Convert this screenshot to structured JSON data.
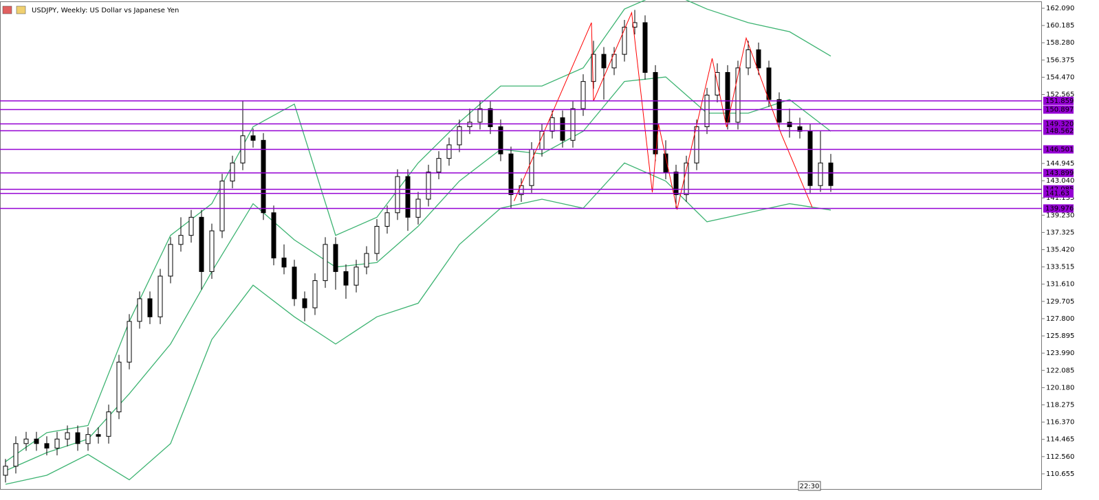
{
  "chart_data": {
    "type": "candlestick",
    "title": "USDJPY, Weekly:  US Dollar vs Japanese Yen",
    "time_label": "22:30",
    "ylim": [
      108.98,
      162.85
    ],
    "yticks": [
      {
        "value": 162.09,
        "label": "162.090"
      },
      {
        "value": 160.185,
        "label": "160.185"
      },
      {
        "value": 158.28,
        "label": "158.280"
      },
      {
        "value": 156.375,
        "label": "156.375"
      },
      {
        "value": 154.47,
        "label": "154.470"
      },
      {
        "value": 152.565,
        "label": "152.565"
      },
      {
        "value": 144.945,
        "label": "144.945"
      },
      {
        "value": 143.04,
        "label": "143.040"
      },
      {
        "value": 141.135,
        "label": "141.135"
      },
      {
        "value": 139.23,
        "label": "139.230"
      },
      {
        "value": 137.325,
        "label": "137.325"
      },
      {
        "value": 135.42,
        "label": "135.420"
      },
      {
        "value": 133.515,
        "label": "133.515"
      },
      {
        "value": 131.61,
        "label": "131.610"
      },
      {
        "value": 129.705,
        "label": "129.705"
      },
      {
        "value": 127.8,
        "label": "127.800"
      },
      {
        "value": 125.895,
        "label": "125.895"
      },
      {
        "value": 123.99,
        "label": "123.990"
      },
      {
        "value": 122.085,
        "label": "122.085"
      },
      {
        "value": 120.18,
        "label": "120.180"
      },
      {
        "value": 118.275,
        "label": "118.275"
      },
      {
        "value": 116.37,
        "label": "116.370"
      },
      {
        "value": 114.465,
        "label": "114.465"
      },
      {
        "value": 112.56,
        "label": "112.560"
      },
      {
        "value": 110.655,
        "label": "110.655"
      }
    ],
    "open": [
      110.5,
      111.5,
      114.0,
      114.5,
      114.0,
      113.5,
      114.5,
      115.2,
      114.0,
      115.0,
      114.8,
      117.5,
      123.0,
      127.5,
      130.0,
      128.0,
      132.5,
      136.0,
      137.0,
      139.0,
      133.0,
      137.5,
      143.0,
      145.0,
      148.0,
      147.5,
      139.5,
      134.5,
      133.5,
      130.0,
      129.0,
      132.0,
      136.0,
      133.0,
      131.5,
      133.5,
      135.0,
      138.0,
      139.5,
      143.5,
      139.0,
      141.0,
      144.0,
      145.5,
      147.0,
      149.0,
      149.5,
      151.0,
      149.0,
      146.0,
      141.5,
      142.5,
      146.5,
      148.5,
      150.0,
      147.5,
      151.0,
      154.0,
      157.0,
      155.5,
      157.0,
      160.0,
      160.5,
      155.0,
      146.0,
      144.0,
      141.5,
      145.0,
      149.0,
      152.5,
      155.0,
      149.5,
      155.5,
      157.5,
      155.5,
      152.0,
      149.5,
      149.0,
      148.5,
      142.5,
      145.0
    ],
    "high": [
      112.3,
      114.8,
      115.3,
      115.3,
      114.8,
      115.3,
      116.0,
      116.0,
      115.8,
      115.8,
      118.3,
      123.8,
      128.3,
      130.8,
      130.8,
      133.3,
      136.8,
      139.0,
      139.8,
      139.8,
      138.3,
      143.8,
      145.8,
      151.9,
      148.8,
      148.3,
      140.3,
      136.0,
      134.3,
      130.8,
      132.8,
      136.8,
      136.8,
      133.8,
      134.3,
      135.8,
      138.8,
      140.3,
      144.3,
      144.3,
      141.8,
      144.8,
      146.3,
      147.8,
      149.8,
      151.0,
      151.8,
      151.8,
      149.8,
      146.8,
      143.3,
      147.3,
      149.3,
      150.8,
      150.8,
      151.8,
      154.8,
      158.5,
      157.8,
      157.8,
      160.8,
      161.9,
      161.3,
      155.8,
      147.5,
      144.8,
      145.8,
      149.8,
      153.3,
      156.0,
      155.8,
      156.3,
      158.5,
      158.3,
      156.3,
      152.8,
      151.0,
      150.0,
      149.3,
      148.5,
      146.0
    ],
    "low": [
      109.7,
      110.7,
      113.2,
      113.2,
      112.7,
      112.7,
      113.7,
      113.2,
      113.2,
      114.0,
      114.0,
      116.7,
      122.2,
      126.7,
      127.2,
      127.2,
      131.7,
      135.2,
      136.2,
      131.0,
      132.2,
      136.7,
      142.2,
      144.2,
      146.7,
      138.7,
      133.7,
      132.7,
      129.2,
      127.5,
      128.2,
      131.2,
      131.0,
      130.0,
      130.7,
      132.7,
      134.2,
      137.2,
      138.7,
      137.5,
      138.2,
      140.2,
      143.2,
      144.7,
      146.2,
      148.2,
      148.7,
      148.2,
      145.2,
      140.0,
      140.7,
      141.7,
      145.7,
      147.7,
      146.7,
      146.7,
      150.2,
      153.2,
      152.0,
      154.7,
      156.2,
      159.2,
      154.2,
      145.2,
      143.2,
      140.0,
      140.7,
      144.2,
      148.2,
      151.7,
      148.7,
      148.7,
      154.7,
      154.7,
      151.2,
      148.7,
      147.8,
      147.7,
      141.7,
      141.8,
      141.8
    ],
    "close": [
      111.5,
      114.0,
      114.5,
      114.0,
      113.5,
      114.5,
      115.2,
      114.0,
      115.0,
      114.8,
      117.5,
      123.0,
      127.5,
      130.0,
      128.0,
      132.5,
      136.0,
      137.0,
      139.0,
      133.0,
      137.5,
      143.0,
      145.0,
      148.0,
      147.5,
      139.5,
      134.5,
      133.5,
      130.0,
      129.0,
      132.0,
      136.0,
      133.0,
      131.5,
      133.5,
      135.0,
      138.0,
      139.5,
      143.5,
      139.0,
      141.0,
      144.0,
      145.5,
      147.0,
      149.0,
      149.5,
      151.0,
      149.0,
      146.0,
      141.5,
      142.5,
      146.5,
      148.5,
      150.0,
      147.5,
      151.0,
      154.0,
      157.0,
      155.5,
      157.0,
      160.0,
      160.5,
      155.0,
      146.0,
      144.0,
      141.5,
      145.0,
      149.0,
      152.5,
      155.0,
      149.5,
      155.5,
      157.5,
      155.5,
      152.0,
      149.5,
      149.0,
      148.5,
      142.5,
      145.0,
      142.5
    ],
    "bands_x": [
      0,
      4,
      8,
      12,
      16,
      20,
      24,
      28,
      32,
      36,
      40,
      44,
      48,
      52,
      56,
      60,
      64,
      68,
      72,
      76,
      80
    ],
    "bands": [
      {
        "color": "#3cb371",
        "values": [
          112.0,
          115.2,
          116.0,
          127.5,
          137.0,
          140.5,
          149.0,
          151.5,
          137.0,
          139.0,
          145.0,
          149.5,
          153.5,
          153.5,
          155.5,
          162.0,
          164.0,
          162.0,
          160.5,
          159.5,
          156.8
        ]
      },
      {
        "color": "#3cb371",
        "values": [
          111.0,
          113.0,
          114.5,
          119.5,
          125.0,
          133.0,
          140.5,
          136.5,
          133.5,
          134.0,
          138.0,
          143.0,
          146.5,
          146.0,
          148.5,
          154.0,
          154.5,
          150.5,
          150.5,
          152.0,
          148.5
        ]
      },
      {
        "color": "#3cb371",
        "values": [
          109.5,
          110.5,
          112.8,
          110.0,
          114.0,
          125.5,
          131.5,
          128.0,
          125.0,
          128.0,
          129.5,
          136.0,
          140.0,
          141.0,
          140.0,
          145.0,
          143.0,
          138.5,
          139.5,
          140.5,
          139.8
        ]
      }
    ],
    "zigzag": {
      "color": "#ff0000",
      "x": [
        49.3,
        56.8,
        57.0,
        60.7,
        62.7,
        63.3,
        65.1,
        68.5,
        69.9,
        71.8,
        75.2,
        78.2
      ],
      "values": [
        140.8,
        160.5,
        151.85,
        161.6,
        141.75,
        149.3,
        139.85,
        156.55,
        148.96,
        158.8,
        148.2,
        140.1
      ]
    },
    "levels_color": "#9400d3",
    "levels": [
      151.859,
      150.897,
      {
        "value": 149.32,
        "label": "149.320"
      },
      148.562,
      146.501,
      143.899,
      142.085,
      141.63,
      139.976
    ]
  }
}
